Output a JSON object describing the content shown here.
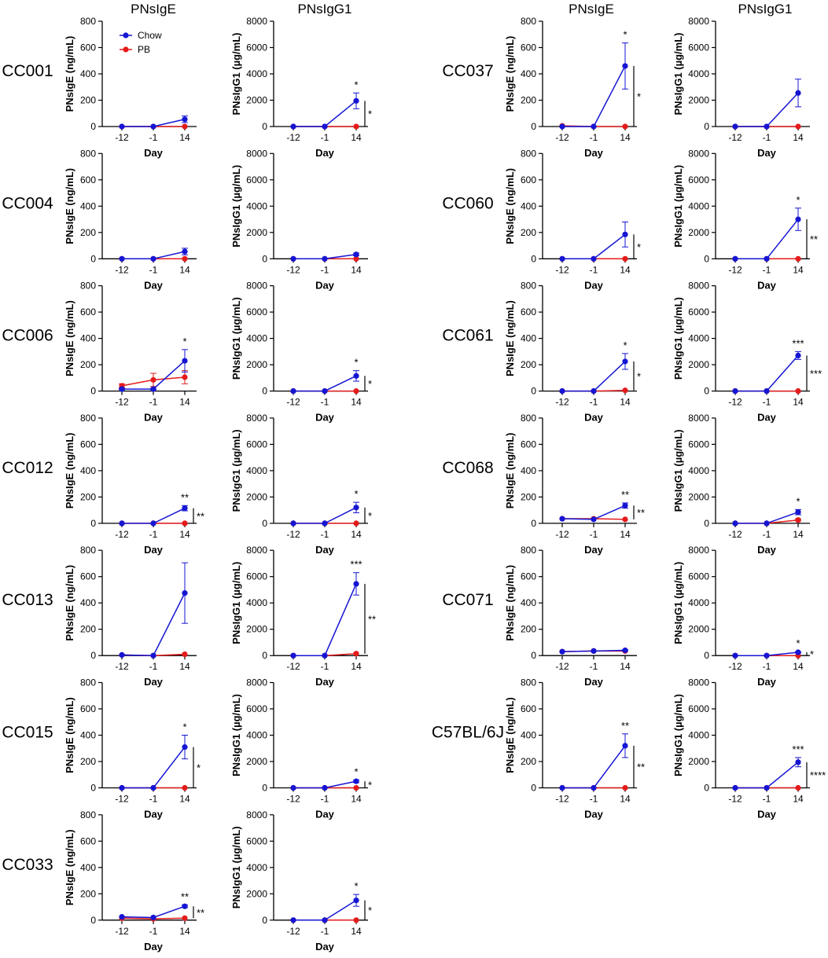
{
  "chart_data": {
    "type": "line",
    "column_titles": [
      "PNsIgE",
      "PNsIgG1",
      "PNsIgE",
      "PNsIgG1"
    ],
    "x_categories": [
      "-12",
      "-1",
      "14"
    ],
    "xlabel": "Day",
    "ige_axis": {
      "ylabel": "PNsIgE (ng/mL)",
      "ylim": [
        0,
        800
      ],
      "ticks": [
        0,
        200,
        400,
        600,
        800
      ]
    },
    "igg1_axis": {
      "ylabel": "PNsIgG1 (µg/mL)",
      "ylim": [
        0,
        8000
      ],
      "ticks": [
        0,
        2000,
        4000,
        6000,
        8000
      ]
    },
    "legend": [
      {
        "name": "Chow",
        "color": "#1515d4"
      },
      {
        "name": "PB",
        "color": "#e41b1b"
      }
    ],
    "strains": [
      {
        "name": "CC001",
        "ige": {
          "chow": [
            0,
            0,
            55
          ],
          "chow_err": [
            0,
            0,
            25
          ],
          "pb": [
            0,
            0,
            0
          ],
          "pb_err": [
            0,
            0,
            0
          ],
          "star_chow": "",
          "bracket": ""
        },
        "igg1": {
          "chow": [
            0,
            0,
            1950
          ],
          "chow_err": [
            0,
            0,
            600
          ],
          "pb": [
            0,
            0,
            0
          ],
          "pb_err": [
            0,
            0,
            0
          ],
          "star_chow": "*",
          "bracket": "*"
        }
      },
      {
        "name": "CC004",
        "ige": {
          "chow": [
            0,
            0,
            55
          ],
          "chow_err": [
            0,
            0,
            25
          ],
          "pb": [
            0,
            0,
            0
          ],
          "pb_err": [
            0,
            0,
            0
          ],
          "star_chow": "",
          "bracket": ""
        },
        "igg1": {
          "chow": [
            0,
            0,
            330
          ],
          "chow_err": [
            0,
            0,
            100
          ],
          "pb": [
            0,
            0,
            0
          ],
          "pb_err": [
            0,
            0,
            0
          ],
          "star_chow": "",
          "bracket": ""
        }
      },
      {
        "name": "CC006",
        "ige": {
          "chow": [
            15,
            15,
            230
          ],
          "chow_err": [
            5,
            5,
            85
          ],
          "pb": [
            40,
            85,
            105
          ],
          "pb_err": [
            15,
            50,
            50
          ],
          "star_chow": "*",
          "bracket": ""
        },
        "igg1": {
          "chow": [
            0,
            0,
            1150
          ],
          "chow_err": [
            0,
            0,
            400
          ],
          "pb": [
            0,
            0,
            0
          ],
          "pb_err": [
            0,
            0,
            0
          ],
          "star_chow": "*",
          "bracket": "*"
        }
      },
      {
        "name": "CC012",
        "ige": {
          "chow": [
            0,
            0,
            115
          ],
          "chow_err": [
            0,
            0,
            20
          ],
          "pb": [
            0,
            0,
            0
          ],
          "pb_err": [
            0,
            0,
            0
          ],
          "star_chow": "**",
          "bracket": "**"
        },
        "igg1": {
          "chow": [
            0,
            0,
            1200
          ],
          "chow_err": [
            0,
            0,
            400
          ],
          "pb": [
            0,
            0,
            0
          ],
          "pb_err": [
            0,
            0,
            0
          ],
          "star_chow": "*",
          "bracket": "*"
        }
      },
      {
        "name": "CC013",
        "ige": {
          "chow": [
            5,
            0,
            475
          ],
          "chow_err": [
            0,
            0,
            230
          ],
          "pb": [
            5,
            0,
            10
          ],
          "pb_err": [
            0,
            0,
            0
          ],
          "star_chow": "",
          "bracket": ""
        },
        "igg1": {
          "chow": [
            0,
            0,
            5450
          ],
          "chow_err": [
            0,
            0,
            850
          ],
          "pb": [
            0,
            0,
            150
          ],
          "pb_err": [
            0,
            0,
            0
          ],
          "star_chow": "***",
          "bracket": "**"
        }
      },
      {
        "name": "CC015",
        "ige": {
          "chow": [
            0,
            0,
            310
          ],
          "chow_err": [
            0,
            0,
            90
          ],
          "pb": [
            0,
            0,
            0
          ],
          "pb_err": [
            0,
            0,
            0
          ],
          "star_chow": "*",
          "bracket": "*"
        },
        "igg1": {
          "chow": [
            0,
            0,
            500
          ],
          "chow_err": [
            0,
            0,
            100
          ],
          "pb": [
            0,
            0,
            0
          ],
          "pb_err": [
            0,
            0,
            0
          ],
          "star_chow": "*",
          "bracket": "*"
        }
      },
      {
        "name": "CC033",
        "ige": {
          "chow": [
            25,
            20,
            105
          ],
          "chow_err": [
            0,
            0,
            10
          ],
          "pb": [
            15,
            10,
            15
          ],
          "pb_err": [
            0,
            0,
            0
          ],
          "star_chow": "**",
          "bracket": "**"
        },
        "igg1": {
          "chow": [
            0,
            0,
            1500
          ],
          "chow_err": [
            0,
            0,
            450
          ],
          "pb": [
            0,
            0,
            0
          ],
          "pb_err": [
            0,
            0,
            0
          ],
          "star_chow": "*",
          "bracket": "*"
        }
      },
      {
        "name": "CC037",
        "ige": {
          "chow": [
            0,
            0,
            460
          ],
          "chow_err": [
            0,
            0,
            175
          ],
          "pb": [
            5,
            0,
            0
          ],
          "pb_err": [
            0,
            0,
            0
          ],
          "star_chow": "*",
          "bracket": "*"
        },
        "igg1": {
          "chow": [
            0,
            0,
            2550
          ],
          "chow_err": [
            0,
            0,
            1050
          ],
          "pb": [
            0,
            0,
            0
          ],
          "pb_err": [
            0,
            0,
            0
          ],
          "star_chow": "",
          "bracket": ""
        }
      },
      {
        "name": "CC060",
        "ige": {
          "chow": [
            0,
            0,
            185
          ],
          "chow_err": [
            0,
            0,
            95
          ],
          "pb": [
            0,
            0,
            0
          ],
          "pb_err": [
            0,
            0,
            0
          ],
          "star_chow": "",
          "bracket": "*"
        },
        "igg1": {
          "chow": [
            0,
            0,
            3000
          ],
          "chow_err": [
            0,
            0,
            850
          ],
          "pb": [
            0,
            0,
            0
          ],
          "pb_err": [
            0,
            0,
            0
          ],
          "star_chow": "*",
          "bracket": "**"
        }
      },
      {
        "name": "CC061",
        "ige": {
          "chow": [
            0,
            0,
            225
          ],
          "chow_err": [
            0,
            0,
            60
          ],
          "pb": [
            0,
            0,
            5
          ],
          "pb_err": [
            0,
            0,
            0
          ],
          "star_chow": "*",
          "bracket": "*"
        },
        "igg1": {
          "chow": [
            0,
            0,
            2700
          ],
          "chow_err": [
            0,
            0,
            300
          ],
          "pb": [
            0,
            0,
            0
          ],
          "pb_err": [
            0,
            0,
            0
          ],
          "star_chow": "***",
          "bracket": "***"
        }
      },
      {
        "name": "CC068",
        "ige": {
          "chow": [
            35,
            30,
            135
          ],
          "chow_err": [
            0,
            0,
            20
          ],
          "pb": [
            35,
            35,
            30
          ],
          "pb_err": [
            0,
            0,
            0
          ],
          "star_chow": "**",
          "bracket": "**"
        },
        "igg1": {
          "chow": [
            0,
            0,
            850
          ],
          "chow_err": [
            0,
            0,
            200
          ],
          "pb": [
            0,
            0,
            250
          ],
          "pb_err": [
            0,
            0,
            80
          ],
          "star_chow": "*",
          "bracket": ""
        }
      },
      {
        "name": "CC071",
        "ige": {
          "chow": [
            30,
            35,
            40
          ],
          "chow_err": [
            0,
            0,
            5
          ],
          "pb": [
            30,
            35,
            35
          ],
          "pb_err": [
            0,
            0,
            0
          ],
          "star_chow": "",
          "bracket": ""
        },
        "igg1": {
          "chow": [
            0,
            0,
            250
          ],
          "chow_err": [
            0,
            0,
            50
          ],
          "pb": [
            0,
            0,
            0
          ],
          "pb_err": [
            0,
            0,
            0
          ],
          "star_chow": "*",
          "bracket": "*"
        }
      },
      {
        "name": "C57BL/6J",
        "ige": {
          "chow": [
            0,
            0,
            320
          ],
          "chow_err": [
            0,
            0,
            90
          ],
          "pb": [
            0,
            0,
            0
          ],
          "pb_err": [
            0,
            0,
            0
          ],
          "star_chow": "**",
          "bracket": "**"
        },
        "igg1": {
          "chow": [
            0,
            0,
            1950
          ],
          "chow_err": [
            0,
            0,
            350
          ],
          "pb": [
            0,
            0,
            0
          ],
          "pb_err": [
            0,
            0,
            0
          ],
          "star_chow": "***",
          "bracket": "****"
        }
      }
    ]
  }
}
